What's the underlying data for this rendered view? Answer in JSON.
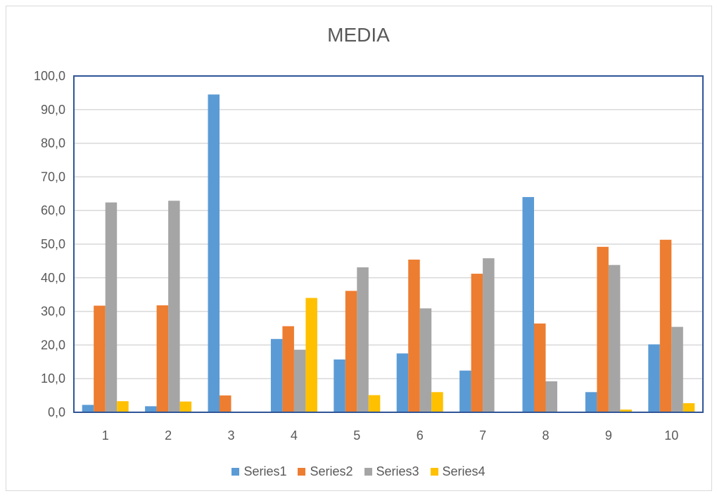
{
  "chart_data": {
    "type": "bar",
    "title": "MEDIA",
    "categories": [
      "1",
      "2",
      "3",
      "4",
      "5",
      "6",
      "7",
      "8",
      "9",
      "10"
    ],
    "series": [
      {
        "name": "Series1",
        "color": "#5b9bd5",
        "values": [
          2.2,
          1.8,
          94.5,
          21.8,
          15.7,
          17.5,
          12.4,
          64.0,
          6.0,
          20.2
        ]
      },
      {
        "name": "Series2",
        "color": "#ed7d31",
        "values": [
          31.7,
          31.8,
          5.0,
          25.6,
          36.1,
          45.4,
          41.2,
          26.4,
          49.2,
          51.3
        ]
      },
      {
        "name": "Series3",
        "color": "#a5a5a5",
        "values": [
          62.4,
          62.9,
          0,
          18.6,
          43.1,
          30.9,
          45.8,
          9.2,
          43.8,
          25.4
        ]
      },
      {
        "name": "Series4",
        "color": "#ffc000",
        "values": [
          3.3,
          3.2,
          0,
          34.0,
          5.1,
          6.0,
          0,
          0,
          0.8,
          2.7
        ]
      }
    ],
    "ylim": [
      0,
      100
    ],
    "yticks": [
      "0,0",
      "10,0",
      "20,0",
      "30,0",
      "40,0",
      "50,0",
      "60,0",
      "70,0",
      "80,0",
      "90,0",
      "100,0"
    ],
    "grid": true,
    "legend_position": "bottom"
  }
}
